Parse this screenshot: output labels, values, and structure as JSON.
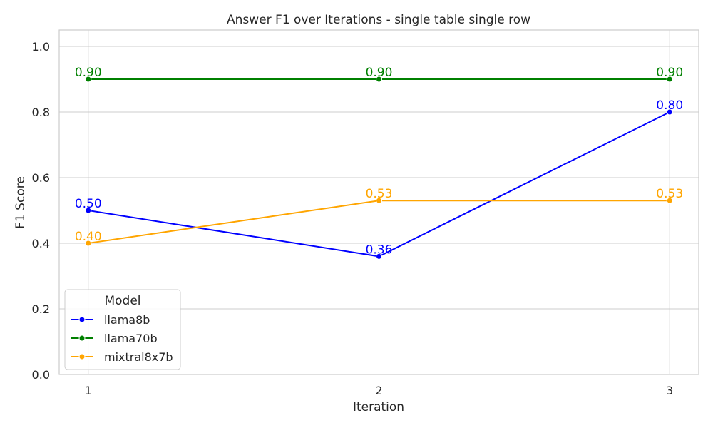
{
  "chart_data": {
    "type": "line",
    "title": "Answer F1 over Iterations - single table single row",
    "xlabel": "Iteration",
    "ylabel": "F1 Score",
    "x": [
      1,
      2,
      3
    ],
    "x_tick_labels": [
      "1",
      "2",
      "3"
    ],
    "xlim": [
      0.9,
      3.1
    ],
    "ylim": [
      0.0,
      1.05
    ],
    "y_ticks": [
      0.0,
      0.2,
      0.4,
      0.6,
      0.8,
      1.0
    ],
    "y_tick_labels": [
      "0.0",
      "0.2",
      "0.4",
      "0.6",
      "0.8",
      "1.0"
    ],
    "grid": true,
    "legend": {
      "title": "Model",
      "placement": "lower-left"
    },
    "series": [
      {
        "name": "llama8b",
        "color": "#0000ff",
        "values": [
          0.5,
          0.36,
          0.8
        ],
        "labels": [
          "0.50",
          "0.36",
          "0.80"
        ]
      },
      {
        "name": "llama70b",
        "color": "#008000",
        "values": [
          0.9,
          0.9,
          0.9
        ],
        "labels": [
          "0.90",
          "0.90",
          "0.90"
        ]
      },
      {
        "name": "mixtral8x7b",
        "color": "#ffa500",
        "values": [
          0.4,
          0.53,
          0.53
        ],
        "labels": [
          "0.40",
          "0.53",
          "0.53"
        ]
      }
    ]
  }
}
